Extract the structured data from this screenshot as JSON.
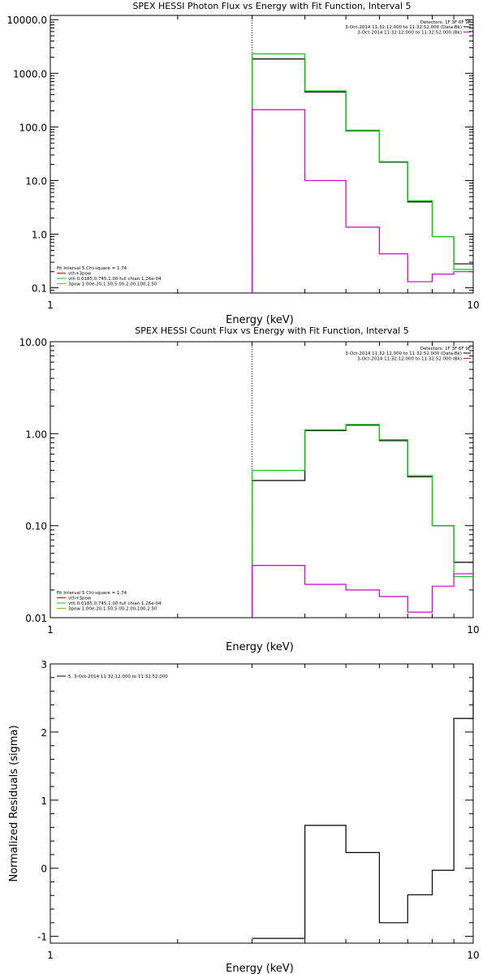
{
  "chart_data": [
    {
      "type": "line",
      "title": "SPEX HESSI Photon Flux vs Energy with Fit Function, Interval 5",
      "xlabel": "Energy (keV)",
      "ylabel": "",
      "xscale": "log",
      "yscale": "log",
      "xlim": [
        1,
        10
      ],
      "ylim": [
        0.08,
        12000
      ],
      "x_ticks": [
        "1",
        "10"
      ],
      "y_ticks": [
        "0.1",
        "1.0",
        "10.0",
        "100.0",
        "1000.0",
        "10000.0"
      ],
      "x_edges": [
        3,
        4,
        5,
        6,
        7,
        8,
        9,
        10
      ],
      "vline_x": 3,
      "detectors": "Detectors: 1F 3F 6F 9F",
      "legend_right": [
        {
          "text": "3-Oct-2014 11:32:12.000 to 11:32:52.000 (Data-Bk)",
          "color": "#000000"
        },
        {
          "text": "3-Oct-2014 11:32:12.000 to 11:32:52.000 (Bk)",
          "color": "#cc00cc"
        }
      ],
      "legend_left": [
        {
          "text": "Fit Interval 5   Chi-square = 1.74",
          "color": ""
        },
        {
          "text": "vth+3pow",
          "color": "#cc0000"
        },
        {
          "text": "vth 0.0185,0.745,1.00  full chian 1.26e-04",
          "color": "#00cc00"
        },
        {
          "text": "3pow 1.00e-20,1.50,5.00,2.00,100,2.50",
          "color": "#cc9900"
        }
      ],
      "series": [
        {
          "color": "#000000",
          "values": [
            1850,
            450,
            85,
            22,
            4.0,
            0.9,
            0.28
          ]
        },
        {
          "color": "#00cc00",
          "values": [
            2300,
            470,
            87,
            22.5,
            4.2,
            0.9,
            0.22
          ]
        },
        {
          "color": "#cc00cc",
          "values": [
            210,
            10,
            1.35,
            0.43,
            0.13,
            0.18,
            0.2
          ]
        }
      ]
    },
    {
      "type": "line",
      "title": "SPEX HESSI Count Flux vs Energy with Fit Function, Interval 5",
      "xlabel": "Energy (keV)",
      "ylabel": "",
      "xscale": "log",
      "yscale": "log",
      "xlim": [
        1,
        10
      ],
      "ylim": [
        0.01,
        10
      ],
      "x_ticks": [
        "1",
        "10"
      ],
      "y_ticks": [
        "0.01",
        "0.10",
        "1.00",
        "10.00"
      ],
      "x_edges": [
        3,
        4,
        5,
        6,
        7,
        8,
        9,
        10
      ],
      "vline_x": 3,
      "detectors": "Detectors: 1F 3F 6F 9F",
      "legend_right": [
        {
          "text": "3-Oct-2014 11:32:12.000 to 11:32:52.000 (Data-Bk)",
          "color": "#000000"
        },
        {
          "text": "3-Oct-2014 11:32:12.000 to 11:32:52.000 (Bk)",
          "color": "#cc00cc"
        }
      ],
      "legend_left": [
        {
          "text": "Fit Interval 5   Chi-square = 1.74",
          "color": ""
        },
        {
          "text": "vth+3pow",
          "color": "#cc0000"
        },
        {
          "text": "vth 0.0185,0.745,1.00  full chian 1.26e-04",
          "color": "#00cc00"
        },
        {
          "text": "3pow 1.00e-20,1.50,5.00,2.00,100,2.50",
          "color": "#cc9900"
        }
      ],
      "series": [
        {
          "color": "#000000",
          "values": [
            0.31,
            1.08,
            1.24,
            0.84,
            0.34,
            0.1,
            0.04
          ]
        },
        {
          "color": "#00cc00",
          "values": [
            0.4,
            1.1,
            1.26,
            0.86,
            0.35,
            0.1,
            0.028
          ]
        },
        {
          "color": "#cc00cc",
          "values": [
            0.037,
            0.023,
            0.02,
            0.017,
            0.0115,
            0.022,
            0.03
          ]
        }
      ]
    },
    {
      "type": "line",
      "title": "",
      "xlabel": "Energy (keV)",
      "ylabel": "Normalized Residuals (sigma)",
      "xscale": "log",
      "yscale": "linear",
      "xlim": [
        1,
        10
      ],
      "ylim": [
        -1.1,
        3
      ],
      "x_ticks": [
        "1",
        "10"
      ],
      "y_ticks": [
        "-1",
        "0",
        "1",
        "2",
        "3"
      ],
      "x_edges": [
        3,
        4,
        5,
        6,
        7,
        8,
        9,
        10
      ],
      "legend_left": [
        {
          "text": "5. 3-Oct-2014 11:32:12.000 to 11:32:52.000",
          "color": "#000000"
        }
      ],
      "series": [
        {
          "color": "#000000",
          "values": [
            -1.03,
            0.63,
            0.23,
            -0.8,
            -0.39,
            -0.03,
            2.2
          ]
        }
      ]
    }
  ]
}
